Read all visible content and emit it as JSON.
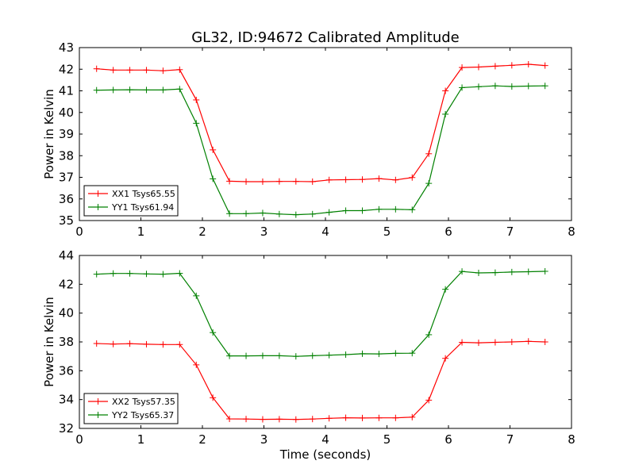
{
  "title": "GL32, ID:94672 Calibrated Amplitude",
  "chart_data": [
    {
      "type": "line",
      "xlabel": "",
      "ylabel": "Power in Kelvin",
      "xlim": [
        0,
        8
      ],
      "ylim": [
        35,
        43
      ],
      "xticks": [
        "0",
        "1",
        "2",
        "3",
        "4",
        "5",
        "6",
        "7",
        "8"
      ],
      "yticks": [
        "35",
        "36",
        "37",
        "38",
        "39",
        "40",
        "41",
        "42",
        "43"
      ],
      "legend_position": "lower-left",
      "grid": false,
      "x": [
        0.28,
        0.55,
        0.82,
        1.09,
        1.36,
        1.63,
        1.9,
        2.17,
        2.44,
        2.71,
        2.98,
        3.25,
        3.52,
        3.79,
        4.06,
        4.33,
        4.6,
        4.87,
        5.14,
        5.41,
        5.68,
        5.95,
        6.22,
        6.49,
        6.76,
        7.03,
        7.3,
        7.57
      ],
      "series": [
        {
          "name": "XX1 Tsys65.55",
          "color": "#ff0000",
          "values": [
            42.02,
            41.96,
            41.96,
            41.96,
            41.93,
            41.98,
            40.58,
            38.27,
            36.82,
            36.8,
            36.8,
            36.81,
            36.81,
            36.8,
            36.88,
            36.89,
            36.9,
            36.94,
            36.88,
            36.99,
            38.09,
            41.0,
            42.08,
            42.1,
            42.14,
            42.18,
            42.23,
            42.17
          ]
        },
        {
          "name": "YY1 Tsys61.94",
          "color": "#008000",
          "values": [
            41.03,
            41.04,
            41.05,
            41.04,
            41.04,
            41.08,
            39.5,
            36.93,
            35.32,
            35.32,
            35.35,
            35.3,
            35.27,
            35.3,
            35.38,
            35.46,
            35.46,
            35.52,
            35.52,
            35.5,
            36.72,
            39.92,
            41.15,
            41.19,
            41.23,
            41.2,
            41.22,
            41.23
          ]
        }
      ]
    },
    {
      "type": "line",
      "xlabel": "Time (seconds)",
      "ylabel": "Power in Kelvin",
      "xlim": [
        0,
        8
      ],
      "ylim": [
        32,
        44
      ],
      "xticks": [
        "0",
        "1",
        "2",
        "3",
        "4",
        "5",
        "6",
        "7",
        "8"
      ],
      "yticks": [
        "32",
        "34",
        "36",
        "38",
        "40",
        "42",
        "44"
      ],
      "legend_position": "lower-left",
      "grid": false,
      "x": [
        0.28,
        0.55,
        0.82,
        1.09,
        1.36,
        1.63,
        1.9,
        2.17,
        2.44,
        2.71,
        2.98,
        3.25,
        3.52,
        3.79,
        4.06,
        4.33,
        4.6,
        4.87,
        5.14,
        5.41,
        5.68,
        5.95,
        6.22,
        6.49,
        6.76,
        7.03,
        7.3,
        7.57
      ],
      "series": [
        {
          "name": "XX2 Tsys57.35",
          "color": "#ff0000",
          "values": [
            37.89,
            37.85,
            37.88,
            37.84,
            37.82,
            37.82,
            36.41,
            34.13,
            32.66,
            32.65,
            32.63,
            32.64,
            32.62,
            32.65,
            32.7,
            32.74,
            32.72,
            32.73,
            32.73,
            32.78,
            33.96,
            36.86,
            37.97,
            37.94,
            37.97,
            38.0,
            38.04,
            38.0
          ]
        },
        {
          "name": "YY2 Tsys65.37",
          "color": "#008000",
          "values": [
            42.7,
            42.75,
            42.75,
            42.72,
            42.7,
            42.76,
            41.2,
            38.65,
            37.03,
            37.03,
            37.04,
            37.04,
            37.0,
            37.04,
            37.08,
            37.12,
            37.18,
            37.17,
            37.21,
            37.22,
            38.5,
            41.65,
            42.89,
            42.79,
            42.81,
            42.85,
            42.87,
            42.9
          ]
        }
      ]
    }
  ]
}
